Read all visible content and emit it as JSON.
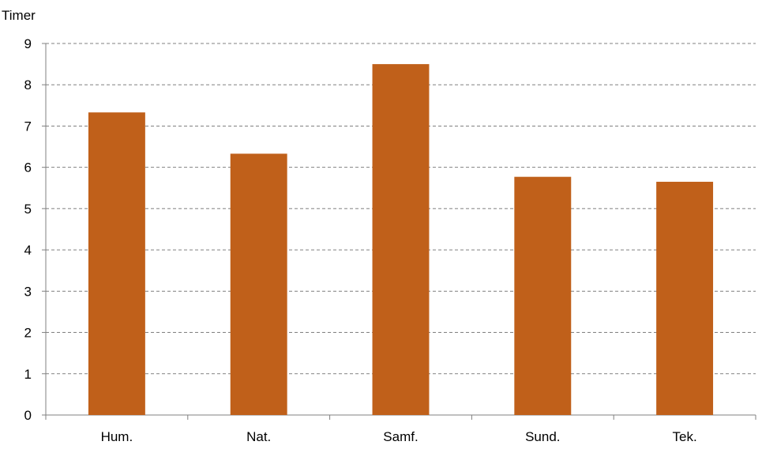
{
  "chart_data": {
    "type": "bar",
    "title": "",
    "xlabel": "",
    "ylabel": "Timer",
    "categories": [
      "Hum.",
      "Nat.",
      "Samf.",
      "Sund.",
      "Tek."
    ],
    "values": [
      7.33,
      6.33,
      8.5,
      5.77,
      5.65
    ],
    "ylim": [
      0,
      9
    ],
    "yticks": [
      0,
      1,
      2,
      3,
      4,
      5,
      6,
      7,
      8,
      9
    ],
    "grid": true,
    "legend": "none",
    "bar_color": "#C0601A",
    "grid_color": "#808080",
    "axis_color": "#808080"
  }
}
